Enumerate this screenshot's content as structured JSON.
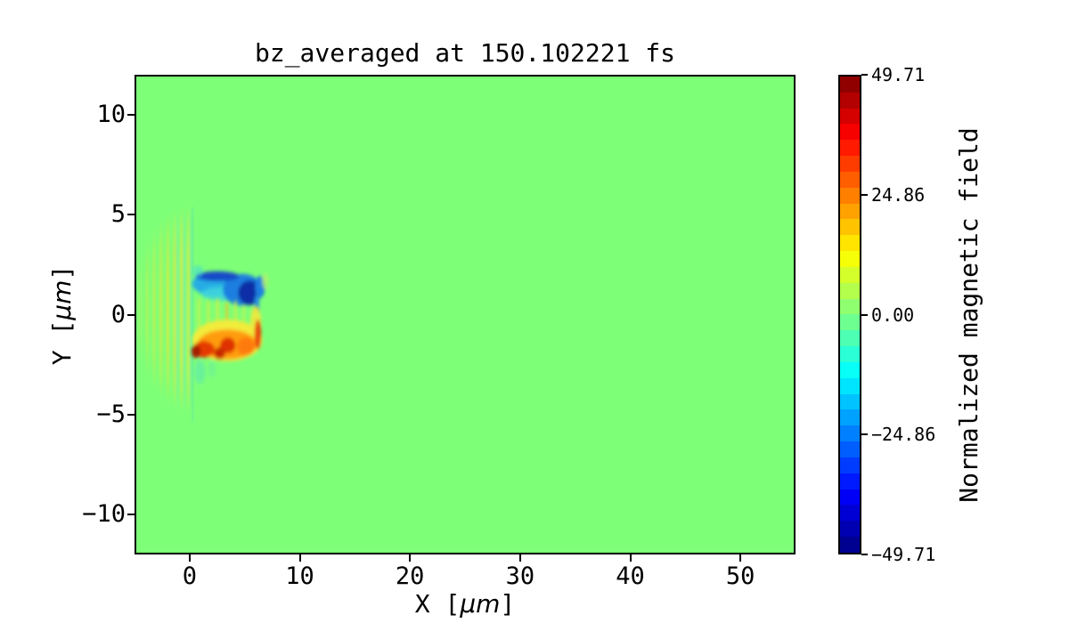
{
  "figure": {
    "title": "bz_averaged at 150.102221 fs",
    "background_color": "#ffffff"
  },
  "chart_data": {
    "type": "heatmap",
    "title": "bz_averaged at 150.102221 fs",
    "xlabel": "X [μm]",
    "ylabel": "Y [μm]",
    "xlim": [
      -5,
      55
    ],
    "ylim": [
      -12,
      12
    ],
    "grid": false,
    "x_ticks": [
      {
        "value": 0,
        "label": "0"
      },
      {
        "value": 10,
        "label": "10"
      },
      {
        "value": 20,
        "label": "20"
      },
      {
        "value": 30,
        "label": "30"
      },
      {
        "value": 40,
        "label": "40"
      },
      {
        "value": 50,
        "label": "50"
      }
    ],
    "y_ticks": [
      {
        "value": 10,
        "label": "10"
      },
      {
        "value": 5,
        "label": "5"
      },
      {
        "value": 0,
        "label": "0"
      },
      {
        "value": -5,
        "label": "−5"
      },
      {
        "value": -10,
        "label": "−10"
      }
    ],
    "colormap": "jet",
    "background_value": 0.0,
    "colorbar": {
      "label": "Normalized magnetic field",
      "position": "right",
      "vmin": -49.71,
      "vmax": 49.71,
      "levels": 30,
      "ticks": [
        {
          "value": 49.71,
          "label": "49.71"
        },
        {
          "value": 24.86,
          "label": "24.86"
        },
        {
          "value": 0.0,
          "label": "0.00"
        },
        {
          "value": -24.86,
          "label": "−24.86"
        },
        {
          "value": -49.71,
          "label": "−49.71"
        }
      ]
    },
    "features": [
      {
        "name": "laser-wavefront-stripes",
        "description": "vertical alternating yellow-green/cyan interference stripes in an elliptical envelope",
        "x_range": [
          -5.0,
          0.3
        ],
        "y_range": [
          -4.9,
          5.5
        ],
        "approx_value_range": [
          -8,
          8
        ]
      },
      {
        "name": "negative-bz-lobe",
        "description": "blue/navy lobe above axis",
        "x_range": [
          0.1,
          6.6
        ],
        "y_range": [
          0.2,
          2.2
        ],
        "approx_peak_value": -49.71
      },
      {
        "name": "positive-bz-lobe",
        "description": "yellow/orange/red lobe below axis with dark red cores near (0.5,-1.9) and (3.3,-1.6)",
        "x_range": [
          0.1,
          6.4
        ],
        "y_range": [
          -2.4,
          -0.1
        ],
        "approx_peak_value": 49.71
      }
    ],
    "palette": {
      "zero_field_green": "#7dff78",
      "stripe_yellow": "#c9ee4b",
      "stripe_cyan": "#55e2c0",
      "lobe_navy": "#0b2fa6",
      "lobe_blue": "#1e7fe0",
      "lobe_cyan": "#3fd6dc",
      "lobe_yellow": "#f2ec3b",
      "lobe_orange": "#ff9c10",
      "lobe_red": "#e03206",
      "lobe_dark_red": "#a61a04",
      "axis_color": "#000000"
    }
  }
}
